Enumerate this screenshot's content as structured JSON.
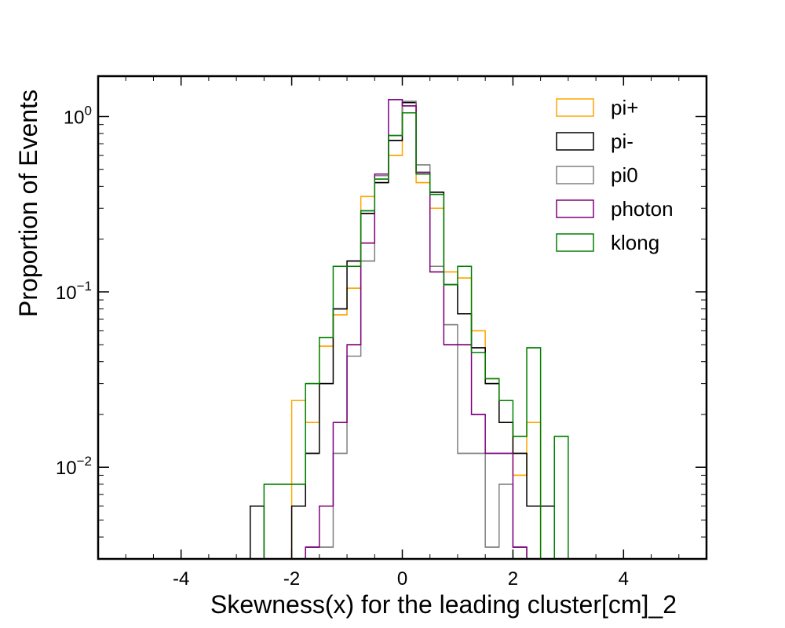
{
  "chart_data": {
    "type": "histogram",
    "xlabel": "Skewness(x) for the leading cluster[cm]_2",
    "ylabel": "Proportion of Events",
    "xlim": [
      -5.5,
      5.5
    ],
    "ylim": [
      0.003,
      1.7
    ],
    "yscale": "log",
    "grid": false,
    "legend_position": "top-right",
    "bin_edges": [
      -2.75,
      -2.5,
      -2.25,
      -2.0,
      -1.75,
      -1.5,
      -1.25,
      -1.0,
      -0.75,
      -0.5,
      -0.25,
      0.0,
      0.25,
      0.5,
      0.75,
      1.0,
      1.25,
      1.5,
      1.75,
      2.0,
      2.25,
      2.5,
      2.75,
      3.0
    ],
    "x_ticks": [
      {
        "value": -4,
        "label": "-4"
      },
      {
        "value": -2,
        "label": "-2"
      },
      {
        "value": 0,
        "label": "0"
      },
      {
        "value": 2,
        "label": "2"
      },
      {
        "value": 4,
        "label": "4"
      }
    ],
    "y_ticks": [
      {
        "value": 1,
        "base": "10",
        "exp": "0"
      },
      {
        "value": 0.1,
        "base": "10",
        "exp": "−1"
      },
      {
        "value": 0.01,
        "base": "10",
        "exp": "−2"
      }
    ],
    "series": [
      {
        "name": "pi+",
        "color": "#ffa500",
        "values": [
          0,
          0,
          0,
          0.024,
          0.018,
          0.049,
          0.074,
          0.105,
          0.35,
          0.46,
          0.6,
          1.2,
          0.42,
          0.3,
          0.13,
          0.12,
          0.06,
          0.032,
          0.018,
          0.009,
          0.018,
          0,
          0,
          0
        ]
      },
      {
        "name": "pi-",
        "color": "#000000",
        "values": [
          0.006,
          0,
          0,
          0.006,
          0.012,
          0.03,
          0.08,
          0.15,
          0.28,
          0.42,
          0.73,
          1.2,
          0.48,
          0.37,
          0.11,
          0.075,
          0.048,
          0.03,
          0.018,
          0.012,
          0.006,
          0.006,
          0,
          0
        ]
      },
      {
        "name": "pi0",
        "color": "#808080",
        "values": [
          0,
          0,
          0,
          0,
          0.0035,
          0.0035,
          0.012,
          0.043,
          0.15,
          0.46,
          0.78,
          1.22,
          0.53,
          0.14,
          0.065,
          0.012,
          0.012,
          0.0035,
          0.008,
          0.0035,
          0,
          0,
          0,
          0
        ]
      },
      {
        "name": "photon",
        "color": "#800080",
        "values": [
          0,
          0,
          0,
          0,
          0.0035,
          0.006,
          0.018,
          0.05,
          0.19,
          0.47,
          1.25,
          1.15,
          0.48,
          0.13,
          0.05,
          0.05,
          0.02,
          0.012,
          0.012,
          0.0035,
          0,
          0,
          0,
          0
        ]
      },
      {
        "name": "klong",
        "color": "#008000",
        "values": [
          0,
          0.008,
          0.008,
          0.008,
          0.03,
          0.055,
          0.14,
          0.14,
          0.29,
          0.44,
          0.78,
          1.05,
          0.47,
          0.36,
          0.11,
          0.14,
          0.045,
          0.032,
          0.024,
          0.015,
          0.048,
          0,
          0.015,
          0
        ]
      }
    ]
  }
}
